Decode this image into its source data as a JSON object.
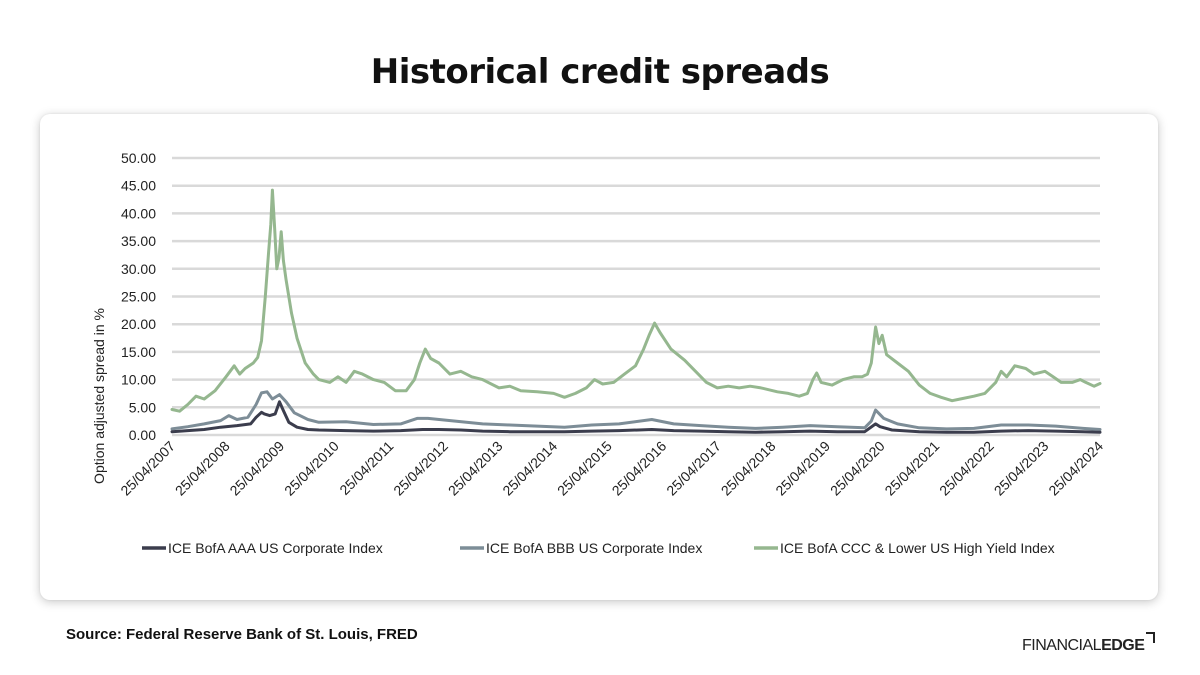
{
  "page": {
    "title": "Historical credit spreads",
    "source": "Source: Federal Reserve Bank of St. Louis, FRED",
    "brand_part1": "FINANCIAL",
    "brand_part2": "EDGE"
  },
  "colors": {
    "aaa": "#3b3d4d",
    "bbb": "#7d8d97",
    "ccc": "#95b78f",
    "grid": "#d9d9d9",
    "text": "#222222"
  },
  "chart_data": {
    "type": "line",
    "title": "Historical credit spreads",
    "ylabel": "Option adjusted spread in %",
    "xlabel": "",
    "ylim": [
      0,
      50
    ],
    "xlim": [
      2007.31,
      2024.31
    ],
    "y_ticks": [
      "0.00",
      "5.00",
      "10.00",
      "15.00",
      "20.00",
      "25.00",
      "30.00",
      "35.00",
      "40.00",
      "45.00",
      "50.00"
    ],
    "x_ticks": [
      "25/04/2007",
      "25/04/2008",
      "25/04/2009",
      "25/04/2010",
      "25/04/2011",
      "25/04/2012",
      "25/04/2013",
      "25/04/2014",
      "25/04/2015",
      "25/04/2016",
      "25/04/2017",
      "25/04/2018",
      "25/04/2019",
      "25/04/2020",
      "25/04/2021",
      "25/04/2022",
      "25/04/2023",
      "25/04/2024"
    ],
    "grid": true,
    "legend_position": "bottom",
    "series": [
      {
        "name": "ICE BofA AAA US Corporate Index",
        "color_key": "aaa",
        "points": [
          [
            2007.31,
            0.6
          ],
          [
            2007.6,
            0.8
          ],
          [
            2007.9,
            1.0
          ],
          [
            2008.2,
            1.4
          ],
          [
            2008.5,
            1.7
          ],
          [
            2008.75,
            2.0
          ],
          [
            2008.85,
            3.2
          ],
          [
            2008.95,
            4.1
          ],
          [
            2009.0,
            3.8
          ],
          [
            2009.1,
            3.5
          ],
          [
            2009.2,
            3.8
          ],
          [
            2009.28,
            6.0
          ],
          [
            2009.35,
            4.4
          ],
          [
            2009.45,
            2.3
          ],
          [
            2009.6,
            1.4
          ],
          [
            2009.8,
            1.0
          ],
          [
            2010.0,
            0.9
          ],
          [
            2010.5,
            0.8
          ],
          [
            2011.0,
            0.7
          ],
          [
            2011.5,
            0.8
          ],
          [
            2011.9,
            1.0
          ],
          [
            2012.2,
            1.0
          ],
          [
            2012.6,
            0.9
          ],
          [
            2013.0,
            0.7
          ],
          [
            2013.5,
            0.6
          ],
          [
            2014.0,
            0.6
          ],
          [
            2014.5,
            0.6
          ],
          [
            2015.0,
            0.7
          ],
          [
            2015.5,
            0.8
          ],
          [
            2016.1,
            1.0
          ],
          [
            2016.5,
            0.8
          ],
          [
            2017.0,
            0.7
          ],
          [
            2017.5,
            0.6
          ],
          [
            2018.0,
            0.5
          ],
          [
            2018.5,
            0.6
          ],
          [
            2019.0,
            0.7
          ],
          [
            2019.5,
            0.6
          ],
          [
            2020.0,
            0.6
          ],
          [
            2020.2,
            2.0
          ],
          [
            2020.28,
            1.5
          ],
          [
            2020.5,
            0.9
          ],
          [
            2021.0,
            0.6
          ],
          [
            2021.5,
            0.5
          ],
          [
            2022.0,
            0.5
          ],
          [
            2022.5,
            0.7
          ],
          [
            2023.0,
            0.8
          ],
          [
            2023.5,
            0.7
          ],
          [
            2024.0,
            0.6
          ],
          [
            2024.31,
            0.5
          ]
        ]
      },
      {
        "name": "ICE BofA BBB US Corporate Index",
        "color_key": "bbb",
        "points": [
          [
            2007.31,
            1.1
          ],
          [
            2007.6,
            1.5
          ],
          [
            2007.9,
            2.0
          ],
          [
            2008.2,
            2.6
          ],
          [
            2008.35,
            3.5
          ],
          [
            2008.5,
            2.8
          ],
          [
            2008.7,
            3.2
          ],
          [
            2008.85,
            5.5
          ],
          [
            2008.95,
            7.6
          ],
          [
            2009.05,
            7.8
          ],
          [
            2009.15,
            6.5
          ],
          [
            2009.28,
            7.3
          ],
          [
            2009.4,
            6.0
          ],
          [
            2009.55,
            4.0
          ],
          [
            2009.8,
            2.8
          ],
          [
            2010.0,
            2.3
          ],
          [
            2010.5,
            2.4
          ],
          [
            2011.0,
            1.9
          ],
          [
            2011.5,
            2.0
          ],
          [
            2011.8,
            3.0
          ],
          [
            2012.0,
            3.0
          ],
          [
            2012.5,
            2.5
          ],
          [
            2013.0,
            2.0
          ],
          [
            2013.5,
            1.8
          ],
          [
            2014.0,
            1.6
          ],
          [
            2014.5,
            1.4
          ],
          [
            2015.0,
            1.8
          ],
          [
            2015.5,
            2.0
          ],
          [
            2016.1,
            2.8
          ],
          [
            2016.5,
            2.0
          ],
          [
            2017.0,
            1.7
          ],
          [
            2017.5,
            1.4
          ],
          [
            2018.0,
            1.2
          ],
          [
            2018.5,
            1.4
          ],
          [
            2019.0,
            1.7
          ],
          [
            2019.5,
            1.5
          ],
          [
            2020.0,
            1.3
          ],
          [
            2020.12,
            2.5
          ],
          [
            2020.2,
            4.5
          ],
          [
            2020.35,
            3.0
          ],
          [
            2020.6,
            2.0
          ],
          [
            2021.0,
            1.3
          ],
          [
            2021.5,
            1.1
          ],
          [
            2022.0,
            1.2
          ],
          [
            2022.5,
            1.8
          ],
          [
            2023.0,
            1.8
          ],
          [
            2023.5,
            1.6
          ],
          [
            2024.0,
            1.2
          ],
          [
            2024.31,
            1.0
          ]
        ]
      },
      {
        "name": "ICE BofA CCC & Lower US High Yield Index",
        "color_key": "ccc",
        "points": [
          [
            2007.31,
            4.6
          ],
          [
            2007.45,
            4.3
          ],
          [
            2007.6,
            5.5
          ],
          [
            2007.75,
            7.0
          ],
          [
            2007.9,
            6.5
          ],
          [
            2008.1,
            8.0
          ],
          [
            2008.3,
            10.5
          ],
          [
            2008.45,
            12.5
          ],
          [
            2008.55,
            11.0
          ],
          [
            2008.65,
            12.0
          ],
          [
            2008.8,
            13.0
          ],
          [
            2008.88,
            14.0
          ],
          [
            2008.95,
            17.0
          ],
          [
            2009.02,
            25.0
          ],
          [
            2009.08,
            33.0
          ],
          [
            2009.12,
            38.0
          ],
          [
            2009.15,
            44.2
          ],
          [
            2009.19,
            37.5
          ],
          [
            2009.23,
            30.0
          ],
          [
            2009.27,
            32.0
          ],
          [
            2009.31,
            36.7
          ],
          [
            2009.35,
            31.5
          ],
          [
            2009.4,
            28.0
          ],
          [
            2009.5,
            22.0
          ],
          [
            2009.6,
            17.5
          ],
          [
            2009.75,
            13.0
          ],
          [
            2009.9,
            11.0
          ],
          [
            2010.0,
            10.0
          ],
          [
            2010.2,
            9.5
          ],
          [
            2010.35,
            10.5
          ],
          [
            2010.5,
            9.5
          ],
          [
            2010.65,
            11.5
          ],
          [
            2010.8,
            11.0
          ],
          [
            2011.0,
            10.0
          ],
          [
            2011.2,
            9.5
          ],
          [
            2011.4,
            8.0
          ],
          [
            2011.6,
            8.0
          ],
          [
            2011.75,
            10.0
          ],
          [
            2011.85,
            13.0
          ],
          [
            2011.95,
            15.5
          ],
          [
            2012.05,
            13.8
          ],
          [
            2012.2,
            13.0
          ],
          [
            2012.4,
            11.0
          ],
          [
            2012.6,
            11.5
          ],
          [
            2012.8,
            10.5
          ],
          [
            2013.0,
            10.0
          ],
          [
            2013.3,
            8.5
          ],
          [
            2013.5,
            8.8
          ],
          [
            2013.7,
            8.0
          ],
          [
            2014.0,
            7.8
          ],
          [
            2014.3,
            7.5
          ],
          [
            2014.5,
            6.8
          ],
          [
            2014.7,
            7.5
          ],
          [
            2014.9,
            8.5
          ],
          [
            2015.05,
            10.0
          ],
          [
            2015.2,
            9.2
          ],
          [
            2015.4,
            9.5
          ],
          [
            2015.6,
            11.0
          ],
          [
            2015.8,
            12.5
          ],
          [
            2015.95,
            15.5
          ],
          [
            2016.05,
            18.0
          ],
          [
            2016.15,
            20.2
          ],
          [
            2016.25,
            18.5
          ],
          [
            2016.45,
            15.5
          ],
          [
            2016.7,
            13.5
          ],
          [
            2016.9,
            11.5
          ],
          [
            2017.1,
            9.5
          ],
          [
            2017.3,
            8.5
          ],
          [
            2017.5,
            8.8
          ],
          [
            2017.7,
            8.5
          ],
          [
            2017.9,
            8.8
          ],
          [
            2018.1,
            8.5
          ],
          [
            2018.4,
            7.8
          ],
          [
            2018.6,
            7.5
          ],
          [
            2018.8,
            7.0
          ],
          [
            2018.95,
            7.5
          ],
          [
            2019.05,
            10.0
          ],
          [
            2019.12,
            11.2
          ],
          [
            2019.2,
            9.5
          ],
          [
            2019.4,
            9.0
          ],
          [
            2019.6,
            10.0
          ],
          [
            2019.8,
            10.5
          ],
          [
            2019.95,
            10.5
          ],
          [
            2020.05,
            11.0
          ],
          [
            2020.12,
            13.0
          ],
          [
            2020.2,
            19.5
          ],
          [
            2020.26,
            16.5
          ],
          [
            2020.32,
            18.0
          ],
          [
            2020.4,
            14.5
          ],
          [
            2020.6,
            13.0
          ],
          [
            2020.8,
            11.5
          ],
          [
            2021.0,
            9.0
          ],
          [
            2021.2,
            7.5
          ],
          [
            2021.4,
            6.8
          ],
          [
            2021.6,
            6.2
          ],
          [
            2021.75,
            6.5
          ],
          [
            2022.0,
            7.0
          ],
          [
            2022.2,
            7.5
          ],
          [
            2022.4,
            9.5
          ],
          [
            2022.5,
            11.5
          ],
          [
            2022.6,
            10.5
          ],
          [
            2022.75,
            12.5
          ],
          [
            2022.95,
            12.0
          ],
          [
            2023.1,
            11.0
          ],
          [
            2023.3,
            11.5
          ],
          [
            2023.45,
            10.5
          ],
          [
            2023.6,
            9.5
          ],
          [
            2023.8,
            9.5
          ],
          [
            2023.95,
            10.0
          ],
          [
            2024.05,
            9.5
          ],
          [
            2024.2,
            8.8
          ],
          [
            2024.31,
            9.3
          ]
        ]
      }
    ]
  }
}
